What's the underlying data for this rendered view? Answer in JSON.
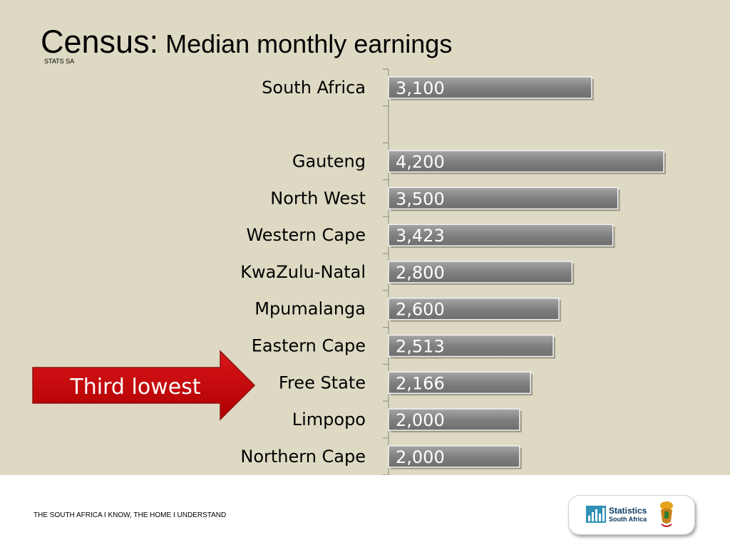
{
  "title_main": "Census:",
  "title_rest": " Median monthly earnings",
  "source_label": "STATS SA",
  "callout": "Third lowest",
  "footer": "THE SOUTH AFRICA I KNOW, THE HOME I UNDERSTAND",
  "logo": {
    "line1": "Statistics",
    "line2": "South Africa"
  },
  "colors": {
    "bar": "#808080",
    "background": "#ddd9c3",
    "callout": "#c00000"
  },
  "chart_data": {
    "type": "bar",
    "orientation": "horizontal",
    "categories": [
      "South Africa",
      "",
      "Gauteng",
      "North West",
      "Western Cape",
      "KwaZulu-Natal",
      "Mpumalanga",
      "Eastern Cape",
      "Free State",
      "Limpopo",
      "Northern Cape"
    ],
    "values": [
      3100,
      null,
      4200,
      3500,
      3423,
      2800,
      2600,
      2513,
      2166,
      2000,
      2000
    ],
    "value_labels": [
      "3,100",
      "",
      "4,200",
      "3,500",
      "3,423",
      "2,800",
      "2,600",
      "2,513",
      "2,166",
      "2,000",
      "2,000"
    ],
    "highlight": "Free State",
    "xlim": [
      0,
      4200
    ],
    "grid": false
  }
}
